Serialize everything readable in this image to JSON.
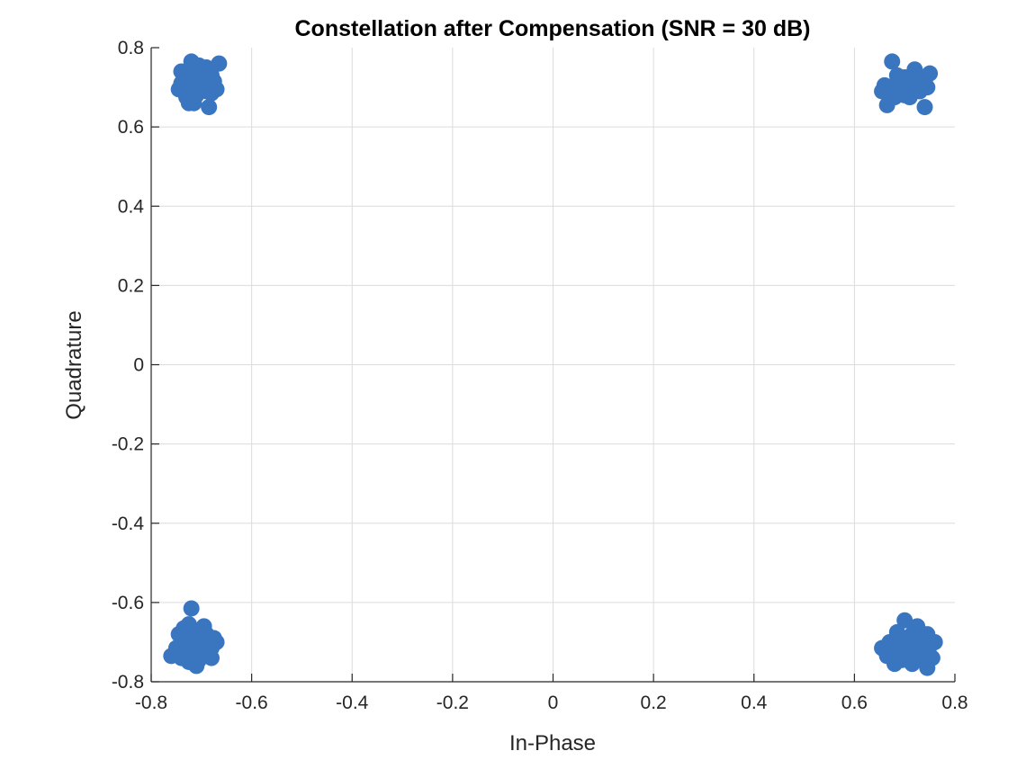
{
  "chart_data": {
    "type": "scatter",
    "title": "Constellation after Compensation (SNR = 30 dB)",
    "xlabel": "In-Phase",
    "ylabel": "Quadrature",
    "xlim": [
      -0.8,
      0.8
    ],
    "ylim": [
      -0.8,
      0.8
    ],
    "xticks": [
      -0.8,
      -0.6,
      -0.4,
      -0.2,
      0,
      0.2,
      0.4,
      0.6,
      0.8
    ],
    "yticks": [
      -0.8,
      -0.6,
      -0.4,
      -0.2,
      0,
      0.2,
      0.4,
      0.6,
      0.8
    ],
    "xtick_labels": [
      "-0.8",
      "-0.6",
      "-0.4",
      "-0.2",
      "0",
      "0.2",
      "0.4",
      "0.6",
      "0.8"
    ],
    "ytick_labels": [
      "-0.8",
      "-0.6",
      "-0.4",
      "-0.2",
      "0",
      "0.2",
      "0.4",
      "0.6",
      "0.8"
    ],
    "grid": true,
    "marker_color": "#3a75c0",
    "series": [
      {
        "points": [
          [
            -0.707,
            0.707
          ],
          [
            -0.72,
            0.73
          ],
          [
            -0.69,
            0.72
          ],
          [
            -0.71,
            0.68
          ],
          [
            -0.73,
            0.7
          ],
          [
            -0.7,
            0.74
          ],
          [
            -0.68,
            0.7
          ],
          [
            -0.74,
            0.71
          ],
          [
            -0.715,
            0.66
          ],
          [
            -0.72,
            0.765
          ],
          [
            -0.665,
            0.76
          ],
          [
            -0.685,
            0.65
          ],
          [
            -0.745,
            0.695
          ],
          [
            -0.7,
            0.715
          ],
          [
            -0.725,
            0.685
          ],
          [
            -0.695,
            0.725
          ],
          [
            -0.675,
            0.715
          ],
          [
            -0.735,
            0.725
          ],
          [
            -0.71,
            0.745
          ],
          [
            -0.69,
            0.69
          ],
          [
            -0.73,
            0.675
          ],
          [
            -0.7,
            0.7
          ],
          [
            -0.72,
            0.71
          ],
          [
            -0.68,
            0.73
          ],
          [
            -0.715,
            0.695
          ],
          [
            -0.705,
            0.755
          ],
          [
            -0.67,
            0.695
          ],
          [
            -0.74,
            0.74
          ],
          [
            -0.725,
            0.66
          ],
          [
            -0.69,
            0.75
          ],
          [
            -0.71,
            0.72
          ],
          [
            -0.68,
            0.685
          ]
        ]
      },
      {
        "points": [
          [
            0.707,
            0.707
          ],
          [
            0.675,
            0.765
          ],
          [
            0.72,
            0.745
          ],
          [
            0.69,
            0.7
          ],
          [
            0.73,
            0.69
          ],
          [
            0.7,
            0.68
          ],
          [
            0.665,
            0.695
          ],
          [
            0.75,
            0.735
          ],
          [
            0.74,
            0.65
          ],
          [
            0.665,
            0.655
          ],
          [
            0.715,
            0.72
          ],
          [
            0.685,
            0.715
          ],
          [
            0.735,
            0.705
          ],
          [
            0.705,
            0.695
          ],
          [
            0.68,
            0.675
          ],
          [
            0.725,
            0.72
          ],
          [
            0.695,
            0.72
          ],
          [
            0.745,
            0.7
          ],
          [
            0.66,
            0.705
          ],
          [
            0.71,
            0.675
          ],
          [
            0.675,
            0.7
          ],
          [
            0.72,
            0.69
          ],
          [
            0.7,
            0.725
          ],
          [
            0.74,
            0.715
          ],
          [
            0.69,
            0.685
          ],
          [
            0.715,
            0.7
          ],
          [
            0.655,
            0.69
          ],
          [
            0.73,
            0.725
          ],
          [
            0.685,
            0.73
          ],
          [
            0.71,
            0.715
          ]
        ]
      },
      {
        "points": [
          [
            -0.707,
            -0.707
          ],
          [
            -0.73,
            -0.69
          ],
          [
            -0.72,
            -0.615
          ],
          [
            -0.76,
            -0.735
          ],
          [
            -0.71,
            -0.76
          ],
          [
            -0.7,
            -0.72
          ],
          [
            -0.69,
            -0.68
          ],
          [
            -0.74,
            -0.7
          ],
          [
            -0.675,
            -0.69
          ],
          [
            -0.695,
            -0.66
          ],
          [
            -0.735,
            -0.665
          ],
          [
            -0.745,
            -0.68
          ],
          [
            -0.715,
            -0.71
          ],
          [
            -0.705,
            -0.745
          ],
          [
            -0.68,
            -0.74
          ],
          [
            -0.72,
            -0.735
          ],
          [
            -0.73,
            -0.72
          ],
          [
            -0.69,
            -0.705
          ],
          [
            -0.7,
            -0.69
          ],
          [
            -0.75,
            -0.715
          ],
          [
            -0.725,
            -0.655
          ],
          [
            -0.71,
            -0.675
          ],
          [
            -0.68,
            -0.715
          ],
          [
            -0.74,
            -0.74
          ],
          [
            -0.695,
            -0.73
          ],
          [
            -0.715,
            -0.695
          ],
          [
            -0.67,
            -0.7
          ],
          [
            -0.725,
            -0.75
          ],
          [
            -0.7,
            -0.705
          ],
          [
            -0.73,
            -0.705
          ]
        ]
      },
      {
        "points": [
          [
            0.707,
            -0.707
          ],
          [
            0.7,
            -0.645
          ],
          [
            0.655,
            -0.715
          ],
          [
            0.745,
            -0.765
          ],
          [
            0.76,
            -0.7
          ],
          [
            0.72,
            -0.74
          ],
          [
            0.69,
            -0.72
          ],
          [
            0.73,
            -0.69
          ],
          [
            0.68,
            -0.7
          ],
          [
            0.715,
            -0.68
          ],
          [
            0.695,
            -0.745
          ],
          [
            0.74,
            -0.72
          ],
          [
            0.675,
            -0.735
          ],
          [
            0.725,
            -0.66
          ],
          [
            0.685,
            -0.675
          ],
          [
            0.705,
            -0.725
          ],
          [
            0.735,
            -0.705
          ],
          [
            0.66,
            -0.72
          ],
          [
            0.75,
            -0.71
          ],
          [
            0.7,
            -0.69
          ],
          [
            0.715,
            -0.755
          ],
          [
            0.68,
            -0.755
          ],
          [
            0.725,
            -0.72
          ],
          [
            0.69,
            -0.695
          ],
          [
            0.745,
            -0.68
          ],
          [
            0.71,
            -0.705
          ],
          [
            0.67,
            -0.7
          ],
          [
            0.735,
            -0.74
          ],
          [
            0.7,
            -0.735
          ],
          [
            0.72,
            -0.7
          ],
          [
            0.755,
            -0.74
          ],
          [
            0.665,
            -0.735
          ]
        ]
      }
    ]
  }
}
